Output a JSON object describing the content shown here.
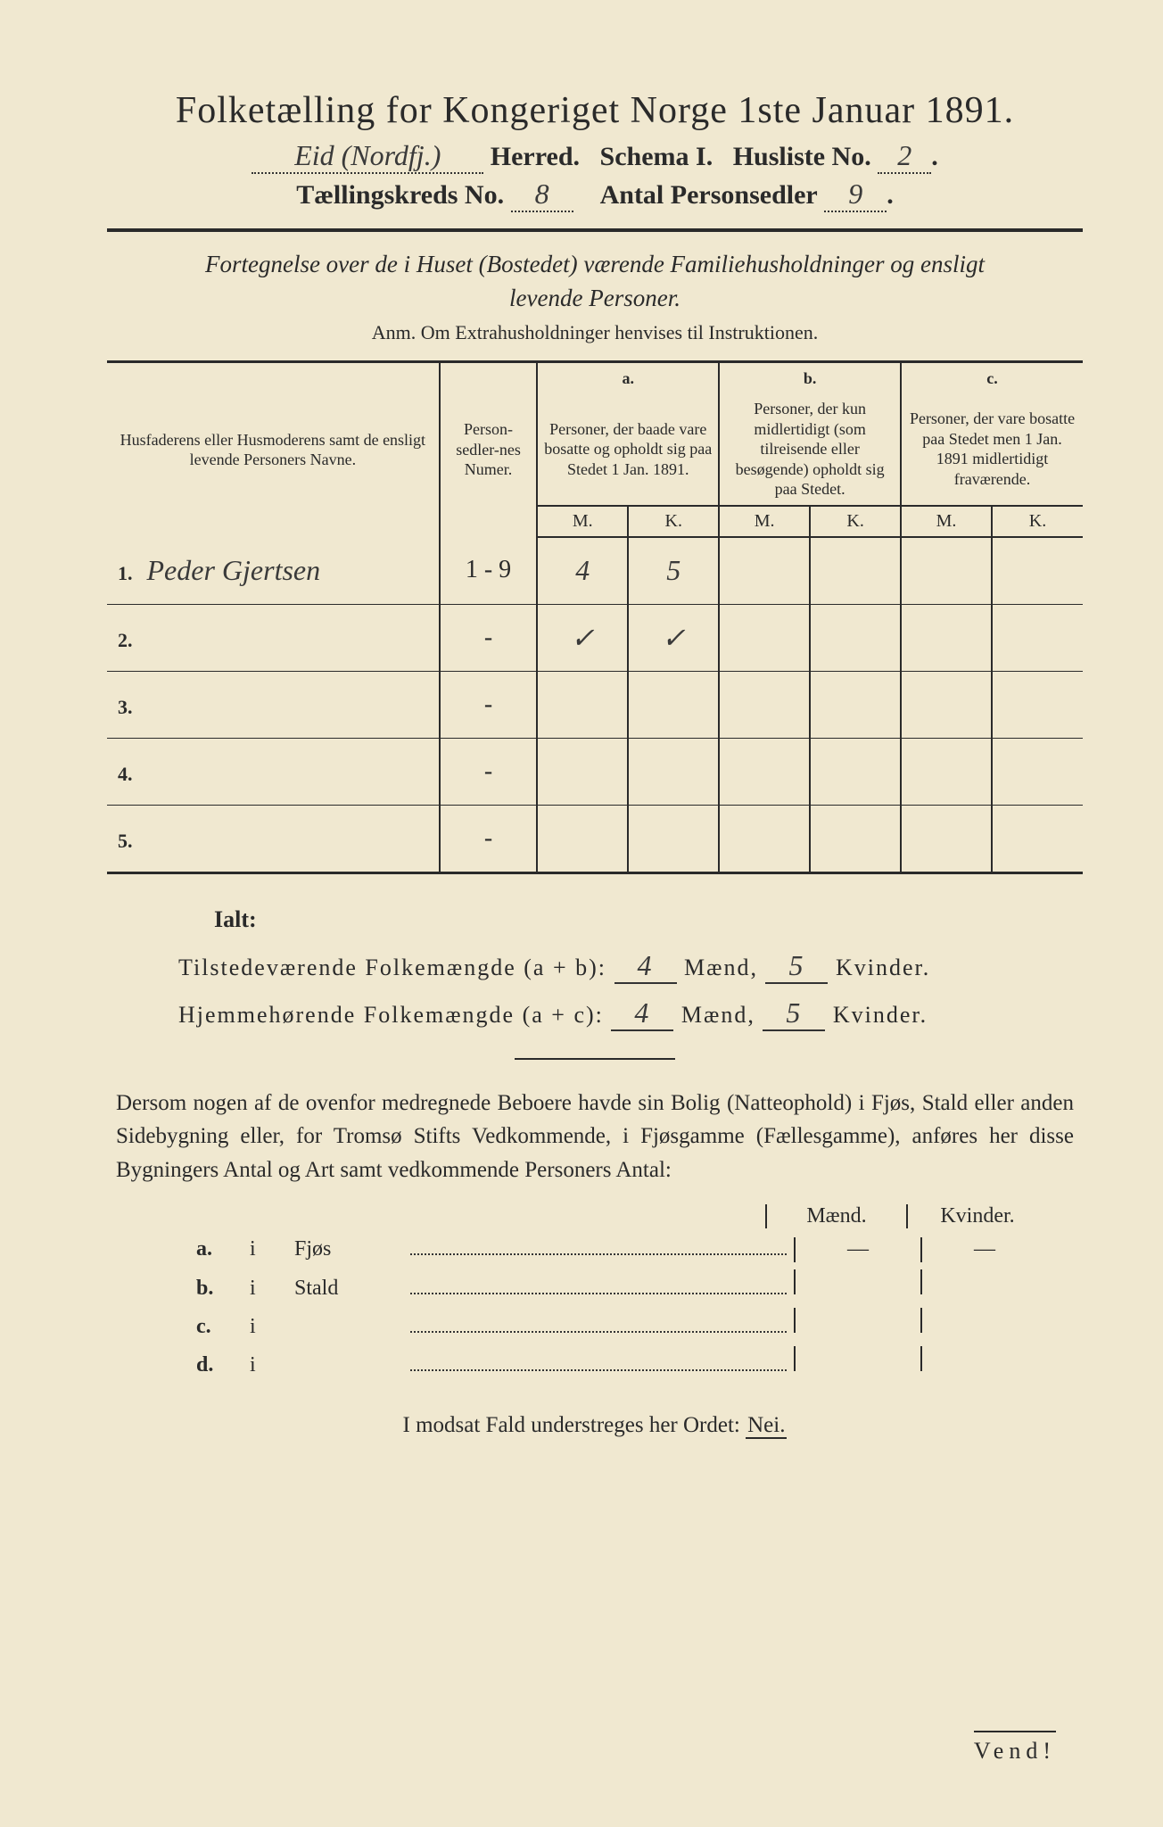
{
  "title": "Folketælling for Kongeriget Norge 1ste Januar 1891.",
  "header": {
    "herred_hand": "Eid (Nordfj.)",
    "herred_label": "Herred.",
    "schema_label": "Schema I.",
    "husliste_label": "Husliste No.",
    "husliste_no": "2",
    "kreds_label": "Tællingskreds No.",
    "kreds_no": "8",
    "antal_label": "Antal Personsedler",
    "antal_no": "9"
  },
  "subtitle_line1": "Fortegnelse over de i Huset (Bostedet) værende Familiehusholdninger og ensligt",
  "subtitle_line2": "levende Personer.",
  "anm": "Anm. Om Extrahusholdninger henvises til Instruktionen.",
  "table": {
    "col_name_header": "Husfaderens eller Husmoderens samt de ensligt levende Personers Navne.",
    "col_num_header": "Person-sedler-nes Numer.",
    "col_a_label": "a.",
    "col_a_header": "Personer, der baade vare bosatte og opholdt sig paa Stedet 1 Jan. 1891.",
    "col_b_label": "b.",
    "col_b_header": "Personer, der kun midlertidigt (som tilreisende eller besøgende) opholdt sig paa Stedet.",
    "col_c_label": "c.",
    "col_c_header": "Personer, der vare bosatte paa Stedet men 1 Jan. 1891 midlertidigt fraværende.",
    "m_label": "M.",
    "k_label": "K.",
    "rows": [
      {
        "n": "1.",
        "name": "Peder Gjertsen",
        "num": "1 - 9",
        "am": "4",
        "ak": "5",
        "bm": "",
        "bk": "",
        "cm": "",
        "ck": ""
      },
      {
        "n": "2.",
        "name": "",
        "num": "-",
        "am": "✓",
        "ak": "✓",
        "bm": "",
        "bk": "",
        "cm": "",
        "ck": ""
      },
      {
        "n": "3.",
        "name": "",
        "num": "-",
        "am": "",
        "ak": "",
        "bm": "",
        "bk": "",
        "cm": "",
        "ck": ""
      },
      {
        "n": "4.",
        "name": "",
        "num": "-",
        "am": "",
        "ak": "",
        "bm": "",
        "bk": "",
        "cm": "",
        "ck": ""
      },
      {
        "n": "5.",
        "name": "",
        "num": "-",
        "am": "",
        "ak": "",
        "bm": "",
        "bk": "",
        "cm": "",
        "ck": ""
      }
    ]
  },
  "ialt": {
    "title": "Ialt:",
    "line1_label": "Tilstedeværende Folkemængde (a + b):",
    "line2_label": "Hjemmehørende Folkemængde (a + c):",
    "maend_label": "Mænd,",
    "kvinder_label": "Kvinder.",
    "line1_m": "4",
    "line1_k": "5",
    "line2_m": "4",
    "line2_k": "5"
  },
  "paragraph": "Dersom nogen af de ovenfor medregnede Beboere havde sin Bolig (Natteophold) i Fjøs, Stald eller anden Sidebygning eller, for Tromsø Stifts Vedkommende, i Fjøsgamme (Fællesgamme), anføres her disse Bygningers Antal og Art samt vedkommende Personers Antal:",
  "buildings": {
    "maend_label": "Mænd.",
    "kvinder_label": "Kvinder.",
    "rows": [
      {
        "key": "a.",
        "i": "i",
        "name": "Fjøs",
        "m": "—",
        "k": "—"
      },
      {
        "key": "b.",
        "i": "i",
        "name": "Stald",
        "m": "",
        "k": ""
      },
      {
        "key": "c.",
        "i": "i",
        "name": "",
        "m": "",
        "k": ""
      },
      {
        "key": "d.",
        "i": "i",
        "name": "",
        "m": "",
        "k": ""
      }
    ]
  },
  "footer": "I modsat Fald understreges her Ordet:",
  "nei": "Nei.",
  "vend": "Vend!",
  "colors": {
    "paper": "#f0e8d0",
    "ink": "#2a2a2a",
    "hand": "#3a3a3a"
  }
}
